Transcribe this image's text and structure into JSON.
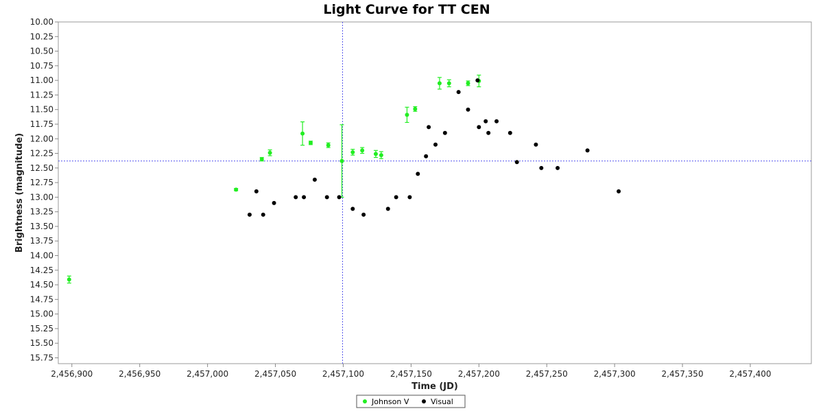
{
  "chart_data": {
    "type": "scatter",
    "title": "Light Curve for TT CEN",
    "xlabel": "Time (JD)",
    "ylabel": "Brightness (magnitude)",
    "xlim": [
      2456890,
      2457445
    ],
    "ylim": [
      15.85,
      10.0
    ],
    "y_inverted": true,
    "xticks": [
      2456900,
      2456950,
      2457000,
      2457050,
      2457100,
      2457150,
      2457200,
      2457250,
      2457300,
      2457350,
      2457400
    ],
    "xtick_labels": [
      "2,456,900",
      "2,456,950",
      "2,457,000",
      "2,457,050",
      "2,457,100",
      "2,457,150",
      "2,457,200",
      "2,457,250",
      "2,457,300",
      "2,457,350",
      "2,457,400"
    ],
    "yticks": [
      10.0,
      10.25,
      10.5,
      10.75,
      11.0,
      11.25,
      11.5,
      11.75,
      12.0,
      12.25,
      12.5,
      12.75,
      13.0,
      13.25,
      13.5,
      13.75,
      14.0,
      14.25,
      14.5,
      14.75,
      15.0,
      15.25,
      15.5,
      15.75
    ],
    "ytick_labels": [
      "10.00",
      "10.25",
      "10.50",
      "10.75",
      "11.00",
      "11.25",
      "11.50",
      "11.75",
      "12.00",
      "12.25",
      "12.50",
      "12.75",
      "13.00",
      "13.25",
      "13.50",
      "13.75",
      "14.00",
      "14.25",
      "14.50",
      "14.75",
      "15.00",
      "15.25",
      "15.50",
      "15.75"
    ],
    "grid": false,
    "legend_position": "bottom-center",
    "crosshair": {
      "x": 2457099.5,
      "y": 12.38
    },
    "series": [
      {
        "name": "Johnson V",
        "color": "#22ee22",
        "marker": "circle",
        "points": [
          {
            "x": 2456898,
            "y": 14.41,
            "err": 0.06
          },
          {
            "x": 2457021,
            "y": 12.87,
            "err": 0.02
          },
          {
            "x": 2457040,
            "y": 12.35,
            "err": 0.03
          },
          {
            "x": 2457046,
            "y": 12.24,
            "err": 0.05
          },
          {
            "x": 2457070,
            "y": 11.91,
            "err": 0.2
          },
          {
            "x": 2457076,
            "y": 12.07,
            "err": 0.03
          },
          {
            "x": 2457089,
            "y": 12.11,
            "err": 0.04
          },
          {
            "x": 2457099,
            "y": 12.38,
            "err": 0.62
          },
          {
            "x": 2457107,
            "y": 12.23,
            "err": 0.05
          },
          {
            "x": 2457114,
            "y": 12.2,
            "err": 0.05
          },
          {
            "x": 2457124,
            "y": 12.26,
            "err": 0.06
          },
          {
            "x": 2457128,
            "y": 12.28,
            "err": 0.06
          },
          {
            "x": 2457147,
            "y": 11.59,
            "err": 0.13
          },
          {
            "x": 2457153,
            "y": 11.49,
            "err": 0.04
          },
          {
            "x": 2457171,
            "y": 11.05,
            "err": 0.1
          },
          {
            "x": 2457178,
            "y": 11.05,
            "err": 0.06
          },
          {
            "x": 2457192,
            "y": 11.05,
            "err": 0.04
          },
          {
            "x": 2457200,
            "y": 11.01,
            "err": 0.1
          }
        ]
      },
      {
        "name": "Visual",
        "color": "#000000",
        "marker": "circle",
        "points": [
          {
            "x": 2457031,
            "y": 13.3
          },
          {
            "x": 2457036,
            "y": 12.9
          },
          {
            "x": 2457041,
            "y": 13.3
          },
          {
            "x": 2457049,
            "y": 13.1
          },
          {
            "x": 2457065,
            "y": 13.0
          },
          {
            "x": 2457071,
            "y": 13.0
          },
          {
            "x": 2457079,
            "y": 12.7
          },
          {
            "x": 2457088,
            "y": 13.0
          },
          {
            "x": 2457097,
            "y": 13.0
          },
          {
            "x": 2457107,
            "y": 13.2
          },
          {
            "x": 2457115,
            "y": 13.3
          },
          {
            "x": 2457133,
            "y": 13.2
          },
          {
            "x": 2457139,
            "y": 13.0
          },
          {
            "x": 2457149,
            "y": 13.0
          },
          {
            "x": 2457155,
            "y": 12.6
          },
          {
            "x": 2457161,
            "y": 12.3
          },
          {
            "x": 2457163,
            "y": 11.8
          },
          {
            "x": 2457168,
            "y": 12.1
          },
          {
            "x": 2457175,
            "y": 11.9
          },
          {
            "x": 2457185,
            "y": 11.2
          },
          {
            "x": 2457192,
            "y": 11.5
          },
          {
            "x": 2457199,
            "y": 11.0
          },
          {
            "x": 2457200,
            "y": 11.8
          },
          {
            "x": 2457205,
            "y": 11.7
          },
          {
            "x": 2457207,
            "y": 11.9
          },
          {
            "x": 2457213,
            "y": 11.7
          },
          {
            "x": 2457223,
            "y": 11.9
          },
          {
            "x": 2457228,
            "y": 12.4
          },
          {
            "x": 2457242,
            "y": 12.1
          },
          {
            "x": 2457246,
            "y": 12.5
          },
          {
            "x": 2457258,
            "y": 12.5
          },
          {
            "x": 2457280,
            "y": 12.2
          },
          {
            "x": 2457303,
            "y": 12.9
          }
        ]
      }
    ]
  }
}
